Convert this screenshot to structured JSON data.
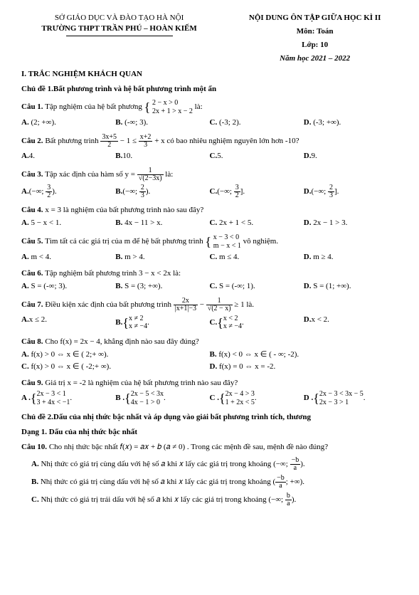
{
  "header": {
    "dept": "SỞ GIÁO DỤC VÀ ĐÀO TẠO HÀ NỘI",
    "school": "TRƯỜNG THPT TRẦN PHÚ – HOÀN KIẾM",
    "title": "NỘI DUNG ÔN TẬP GIỮA HỌC KÌ II",
    "subject_label": "Môn:",
    "subject": "Toán",
    "grade_label": "Lớp:",
    "grade": "10",
    "year": "Năm học 2021 – 2022"
  },
  "section1_title": "I. TRẮC NGHIỆM KHÁCH QUAN",
  "topic1_title": "Chủ đề 1.Bất phương trình và hệ bất phương trình một ẩn",
  "q1": {
    "label": "Câu 1.",
    "text_a": "Tập nghiệm của hệ bất phương ",
    "sys1": "2 − x > 0",
    "sys2": "2x + 1 > x − 2",
    "tail": " là:",
    "A": "(2; +∞).",
    "B": "(-∞; 3).",
    "C": "(-3; 2).",
    "D": "(-3; +∞)."
  },
  "q2": {
    "label": "Câu 2.",
    "text_a": "Bất phương trình ",
    "f1n": "3x+5",
    "f1d": "2",
    "mid": " − 1 ≤ ",
    "f2n": "x+2",
    "f2d": "3",
    "text_b": " + x có bao nhiêu nghiệm nguyên lớn hơn -10?",
    "A": "4.",
    "B": "10.",
    "C": "5.",
    "D": "9."
  },
  "q3": {
    "label": "Câu 3.",
    "text": "Tập xác định của hàm số y = ",
    "fn": "1",
    "fd": "√(2−3x)",
    "tail": " là:",
    "A_pre": "(−∞; ",
    "A_n": "3",
    "A_d": "2",
    "A_post": ").",
    "B_pre": "(−∞; ",
    "B_n": "2",
    "B_d": "3",
    "B_post": ").",
    "C_pre": "(−∞; ",
    "C_n": "3",
    "C_d": "2",
    "C_post": "].",
    "D_pre": "(−∞; ",
    "D_n": "2",
    "D_d": "3",
    "D_post": "]."
  },
  "q4": {
    "label": "Câu 4.",
    "text": "x = 3 là nghiệm của bất phương trình nào sau đây?",
    "A": "5 − x < 1.",
    "B": "4x − 11 > x.",
    "C": "2x + 1 < 5.",
    "D": "2x − 1 > 3."
  },
  "q5": {
    "label": "Câu 5.",
    "text_a": "Tìm tất cả các giá trị của m để hệ bất phương trình ",
    "sys1": "x − 3 < 0",
    "sys2": "m − x < 1",
    "tail": " vô nghiệm.",
    "A": "m < 4.",
    "B": "m > 4.",
    "C": "m ≤ 4.",
    "D": "m ≥ 4."
  },
  "q6": {
    "label": "Câu 6.",
    "text": "Tập nghiệm bất phương trình  3 − x < 2x là:",
    "A": "S = (-∞; 3).",
    "B": "S = (3; +∞).",
    "C": "S = (-∞; 1).",
    "D": "S = (1; +∞)."
  },
  "q7": {
    "label": "Câu 7.",
    "text_a": "Điều kiện xác định của bất phương trình ",
    "f1n": "2x",
    "f1d": "|x+1|−3",
    "mid": " − ",
    "f2n": "1",
    "f2d": "√(2 − x)",
    "tail": " ≥ 1 là.",
    "A": "x ≤ 2.",
    "B1": "x ≠ 2",
    "B2": "x ≠ −4",
    "C1": "x < 2",
    "C2": "x ≠ −4",
    "D": "x < 2."
  },
  "q8": {
    "label": "Câu 8.",
    "text": "Cho f(x) = 2x − 4, khẳng định nào sau đây đúng?",
    "A": "f(x) > 0 ⇔ x ∈ ( 2;+ ∞).",
    "B": "f(x) < 0 ⇔ x ∈ ( - ∞; -2).",
    "C": "f(x) > 0 ⇔ x ∈ ( -2;+ ∞).",
    "D": "f(x) = 0 ⇔ x = -2."
  },
  "q9": {
    "label": "Câu 9.",
    "text": "Giá trị x = -2 là nghiệm của hệ bất phương trình nào sau đây?",
    "A1": "2x − 3 < 1",
    "A2": "3 + 4x < −1",
    "B1": "2x − 5 < 3x",
    "B2": "4x − 1 > 0",
    "C1": "2x − 4 > 3",
    "C2": "1 + 2x < 5",
    "D1": "2x − 3 < 3x − 5",
    "D2": "2x − 3 > 1"
  },
  "topic2_title": "Chủ đề 2.Dấu của nhị thức bậc nhất và áp dụng vào giải bất phương trình tích, thương",
  "form1_title": "Dạng 1. Dấu của nhị thức bậc nhất",
  "q10": {
    "label": "Câu 10.",
    "text": "Cho nhị thức bậc nhất 𝑓(𝑥) = 𝑎𝑥 + 𝑏 (𝑎 ≠ 0) . Trong các mệnh đề sau, mệnh đề nào đúng?",
    "A_pre": "Nhị thức có giá trị cùng dấu với hệ số 𝑎 khi 𝑥 lấy các giá trị trong khoảng ",
    "A_int": "(−∞; ",
    "A_n": "−b",
    "A_d": "a",
    "A_post": ").",
    "B_pre": "Nhị thức có giá trị cùng dấu với hệ số 𝑎 khi 𝑥 lấy các giá trị trong khoảng ",
    "B_int": "(",
    "B_n": "−b",
    "B_d": "a",
    "B_post": "; +∞).",
    "C_pre": "Nhị thức có giá trị trái dấu với hệ số 𝑎 khi 𝑥 lấy các giá trị trong khoảng ",
    "C_int": "(−∞; ",
    "C_n": "b",
    "C_d": "a",
    "C_post": ")."
  }
}
